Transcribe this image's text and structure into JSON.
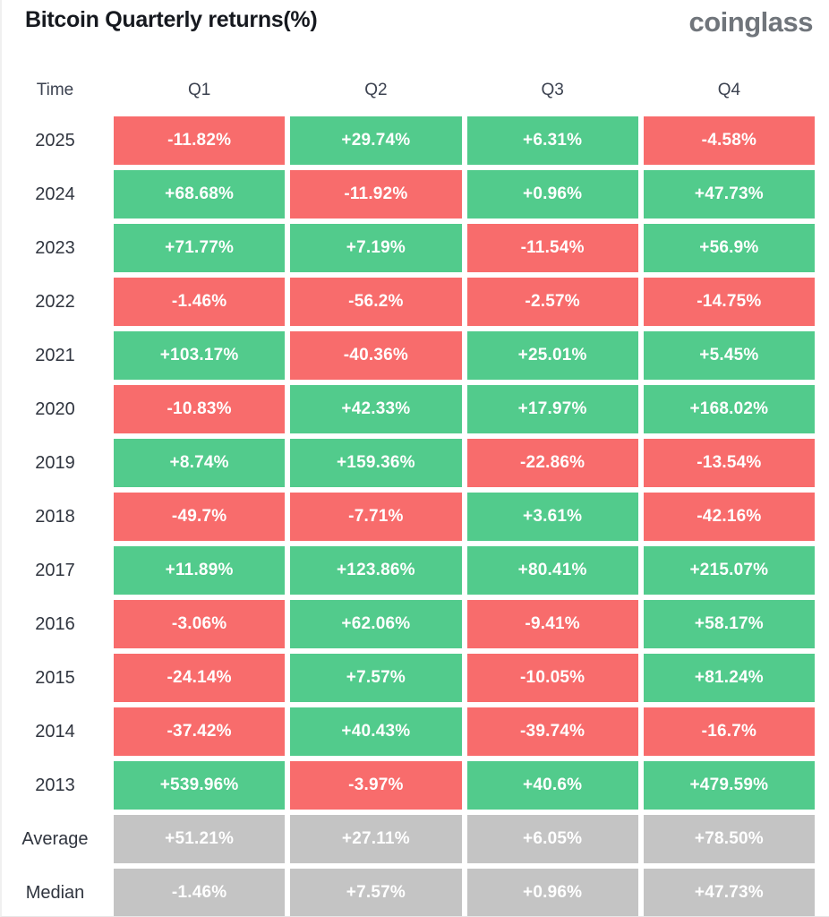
{
  "header": {
    "title": "Bitcoin Quarterly returns(%)",
    "logo": "coinglass"
  },
  "colors": {
    "positive": "#52cb8c",
    "negative": "#f86c6c",
    "neutral": "#c4c4c4",
    "title_text": "#16191f",
    "logo_text": "#70757b"
  },
  "table": {
    "columns": [
      "Time",
      "Q1",
      "Q2",
      "Q3",
      "Q4"
    ],
    "rows": [
      {
        "label": "2025",
        "summary": false,
        "values": [
          "-11.82%",
          "+29.74%",
          "+6.31%",
          "-4.58%"
        ]
      },
      {
        "label": "2024",
        "summary": false,
        "values": [
          "+68.68%",
          "-11.92%",
          "+0.96%",
          "+47.73%"
        ]
      },
      {
        "label": "2023",
        "summary": false,
        "values": [
          "+71.77%",
          "+7.19%",
          "-11.54%",
          "+56.9%"
        ]
      },
      {
        "label": "2022",
        "summary": false,
        "values": [
          "-1.46%",
          "-56.2%",
          "-2.57%",
          "-14.75%"
        ]
      },
      {
        "label": "2021",
        "summary": false,
        "values": [
          "+103.17%",
          "-40.36%",
          "+25.01%",
          "+5.45%"
        ]
      },
      {
        "label": "2020",
        "summary": false,
        "values": [
          "-10.83%",
          "+42.33%",
          "+17.97%",
          "+168.02%"
        ]
      },
      {
        "label": "2019",
        "summary": false,
        "values": [
          "+8.74%",
          "+159.36%",
          "-22.86%",
          "-13.54%"
        ]
      },
      {
        "label": "2018",
        "summary": false,
        "values": [
          "-49.7%",
          "-7.71%",
          "+3.61%",
          "-42.16%"
        ]
      },
      {
        "label": "2017",
        "summary": false,
        "values": [
          "+11.89%",
          "+123.86%",
          "+80.41%",
          "+215.07%"
        ]
      },
      {
        "label": "2016",
        "summary": false,
        "values": [
          "-3.06%",
          "+62.06%",
          "-9.41%",
          "+58.17%"
        ]
      },
      {
        "label": "2015",
        "summary": false,
        "values": [
          "-24.14%",
          "+7.57%",
          "-10.05%",
          "+81.24%"
        ]
      },
      {
        "label": "2014",
        "summary": false,
        "values": [
          "-37.42%",
          "+40.43%",
          "-39.74%",
          "-16.7%"
        ]
      },
      {
        "label": "2013",
        "summary": false,
        "values": [
          "+539.96%",
          "-3.97%",
          "+40.6%",
          "+479.59%"
        ]
      },
      {
        "label": "Average",
        "summary": true,
        "values": [
          "+51.21%",
          "+27.11%",
          "+6.05%",
          "+78.50%"
        ]
      },
      {
        "label": "Median",
        "summary": true,
        "values": [
          "-1.46%",
          "+7.57%",
          "+0.96%",
          "+47.73%"
        ]
      }
    ]
  },
  "chart_data": {
    "type": "heatmap",
    "title": "Bitcoin Quarterly returns(%)",
    "columns": [
      "Q1",
      "Q2",
      "Q3",
      "Q4"
    ],
    "rows": [
      "2025",
      "2024",
      "2023",
      "2022",
      "2021",
      "2020",
      "2019",
      "2018",
      "2017",
      "2016",
      "2015",
      "2014",
      "2013",
      "Average",
      "Median"
    ],
    "values_pct": [
      [
        -11.82,
        29.74,
        6.31,
        -4.58
      ],
      [
        68.68,
        -11.92,
        0.96,
        47.73
      ],
      [
        71.77,
        7.19,
        -11.54,
        56.9
      ],
      [
        -1.46,
        -56.2,
        -2.57,
        -14.75
      ],
      [
        103.17,
        -40.36,
        25.01,
        5.45
      ],
      [
        -10.83,
        42.33,
        17.97,
        168.02
      ],
      [
        8.74,
        159.36,
        -22.86,
        -13.54
      ],
      [
        -49.7,
        -7.71,
        3.61,
        -42.16
      ],
      [
        11.89,
        123.86,
        80.41,
        215.07
      ],
      [
        -3.06,
        62.06,
        -9.41,
        58.17
      ],
      [
        -24.14,
        7.57,
        -10.05,
        81.24
      ],
      [
        -37.42,
        40.43,
        -39.74,
        -16.7
      ],
      [
        539.96,
        -3.97,
        40.6,
        479.59
      ],
      [
        51.21,
        27.11,
        6.05,
        78.5
      ],
      [
        -1.46,
        7.57,
        0.96,
        47.73
      ]
    ],
    "legend": "green = positive return, red = negative return, gray = summary rows",
    "grid": false
  }
}
